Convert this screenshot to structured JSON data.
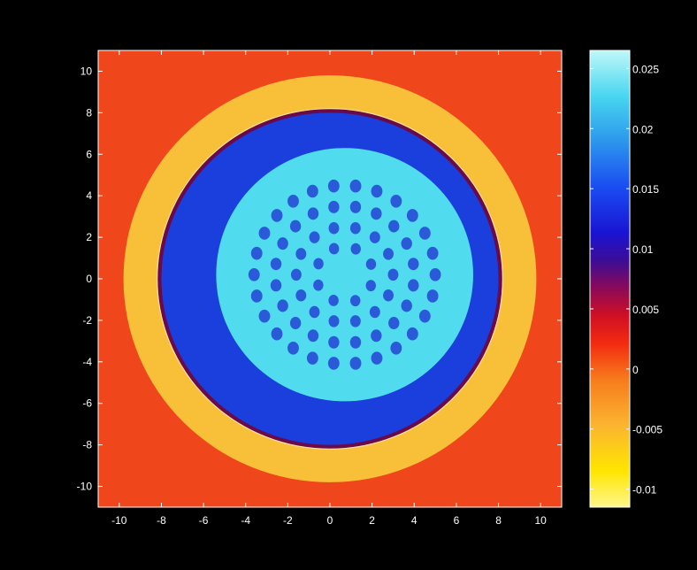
{
  "chart_data": {
    "type": "heatmap",
    "title": "",
    "xlabel": "",
    "ylabel": "",
    "xlim": [
      -11,
      11
    ],
    "ylim": [
      -11,
      11
    ],
    "x_ticks": [
      "-10",
      "-8",
      "-6",
      "-4",
      "-2",
      "0",
      "2",
      "4",
      "6",
      "8",
      "10"
    ],
    "y_ticks": [
      "10",
      "8",
      "6",
      "4",
      "2",
      "0",
      "-2",
      "-4",
      "-6",
      "-8",
      "-10"
    ],
    "x_tick_values": [
      -10,
      -8,
      -6,
      -4,
      -2,
      0,
      2,
      4,
      6,
      8,
      10
    ],
    "y_tick_values": [
      10,
      8,
      6,
      4,
      2,
      0,
      -2,
      -4,
      -6,
      -8,
      -10
    ],
    "background": "#000000",
    "grid": false,
    "regions": [
      {
        "name": "outer-field",
        "shape": "square",
        "half_width": 11,
        "value": -0.002,
        "color": "#f0461c"
      },
      {
        "name": "outer-ring",
        "shape": "circle",
        "cx": 0,
        "cy": 0,
        "r": 9.8,
        "value": -0.006,
        "color": "#f8bf38"
      },
      {
        "name": "rim",
        "shape": "circle",
        "cx": 0,
        "cy": 0,
        "r": 8.2,
        "value": 0.004,
        "color": "#6a0a4a"
      },
      {
        "name": "shell",
        "shape": "circle",
        "cx": 0,
        "cy": 0,
        "r": 8.0,
        "value": 0.013,
        "color": "#1a3fdc"
      },
      {
        "name": "core",
        "shape": "circle",
        "cx": 0.7,
        "cy": 0.2,
        "r": 6.1,
        "value": 0.024,
        "color": "#50dcee"
      }
    ],
    "inclusions": {
      "center": [
        0.7,
        0.2
      ],
      "value": 0.014,
      "color": "#2a5ad8",
      "rings": [
        {
          "radius": 4.3,
          "count": 26,
          "start_angle": 0,
          "spot_radius": 0.27
        },
        {
          "radius": 3.3,
          "count": 20,
          "start_angle": 9,
          "spot_radius": 0.26
        },
        {
          "radius": 2.3,
          "count": 14,
          "start_angle": 0,
          "spot_radius": 0.25
        },
        {
          "radius": 1.35,
          "count": 8,
          "start_angle": 22,
          "spot_radius": 0.24
        }
      ]
    },
    "colorbar": {
      "min": -0.0115,
      "max": 0.0265,
      "tick_values": [
        0.025,
        0.02,
        0.015,
        0.01,
        0.005,
        0,
        -0.005,
        -0.01
      ],
      "tick_labels": [
        "0.025",
        "0.02",
        "0.015",
        "0.01",
        "0.005",
        "0",
        "-0.005",
        "-0.01"
      ],
      "colormap": [
        [
          0.0,
          "#fff68c"
        ],
        [
          0.08,
          "#ffe500"
        ],
        [
          0.18,
          "#fbb431"
        ],
        [
          0.28,
          "#f77b1c"
        ],
        [
          0.36,
          "#f22a10"
        ],
        [
          0.42,
          "#cf0f24"
        ],
        [
          0.48,
          "#8a0a5a"
        ],
        [
          0.54,
          "#3c0c96"
        ],
        [
          0.6,
          "#1a14d2"
        ],
        [
          0.7,
          "#1a4cf2"
        ],
        [
          0.8,
          "#2c96ec"
        ],
        [
          0.9,
          "#48d6f0"
        ],
        [
          1.0,
          "#bff8f8"
        ]
      ]
    }
  }
}
